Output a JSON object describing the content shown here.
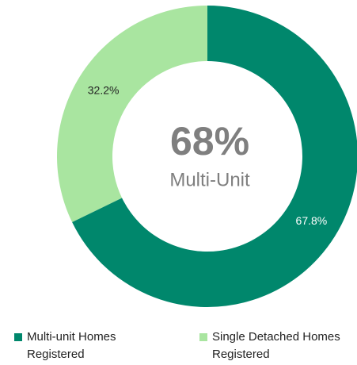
{
  "chart_data": {
    "type": "donut",
    "categories": [
      "Multi-unit Homes Registered",
      "Single Detached Homes Registered"
    ],
    "values": [
      67.8,
      32.2
    ],
    "value_labels": [
      "67.8%",
      "32.2%"
    ],
    "colors": [
      "#00876c",
      "#a9e5a0"
    ],
    "annotations": [
      "68%",
      "Multi-Unit"
    ]
  }
}
